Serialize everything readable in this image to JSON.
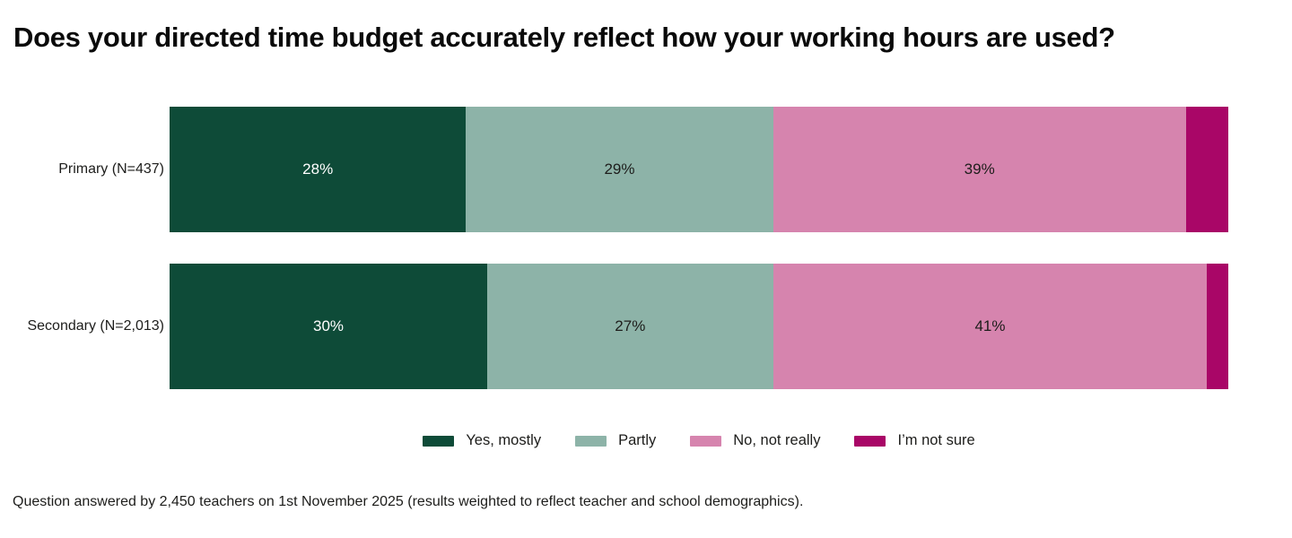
{
  "title": "Does your directed time budget accurately reflect how your working hours are used?",
  "footer": "Question answered by 2,450 teachers on 1st November 2025 (results weighted to reflect teacher and school demographics).",
  "chart_data": {
    "type": "bar",
    "orientation": "horizontal-stacked",
    "title": "Does your directed time budget accurately reflect how your working hours are used?",
    "categories": [
      "Primary (N=437)",
      "Secondary (N=2,013)"
    ],
    "series": [
      {
        "name": "Yes, mostly",
        "color": "#0E4B38",
        "label_color": "#FFFFFF",
        "values": [
          28,
          30
        ]
      },
      {
        "name": "Partly",
        "color": "#8DB3A8",
        "label_color": "#1D1D1B",
        "values": [
          29,
          27
        ]
      },
      {
        "name": "No, not really",
        "color": "#D684AE",
        "label_color": "#1D1D1B",
        "values": [
          39,
          41
        ]
      },
      {
        "name": "I’m not sure",
        "color": "#A90667",
        "label_color": "#FFFFFF",
        "values": [
          4,
          2
        ]
      }
    ],
    "value_suffix": "%",
    "min_label_value": 5,
    "xlim": [
      0,
      100
    ],
    "axis": "none",
    "grid": false,
    "legend_position": "bottom-center",
    "note": "Question answered by 2,450 teachers on 1st November 2025 (results weighted to reflect teacher and school demographics)."
  }
}
